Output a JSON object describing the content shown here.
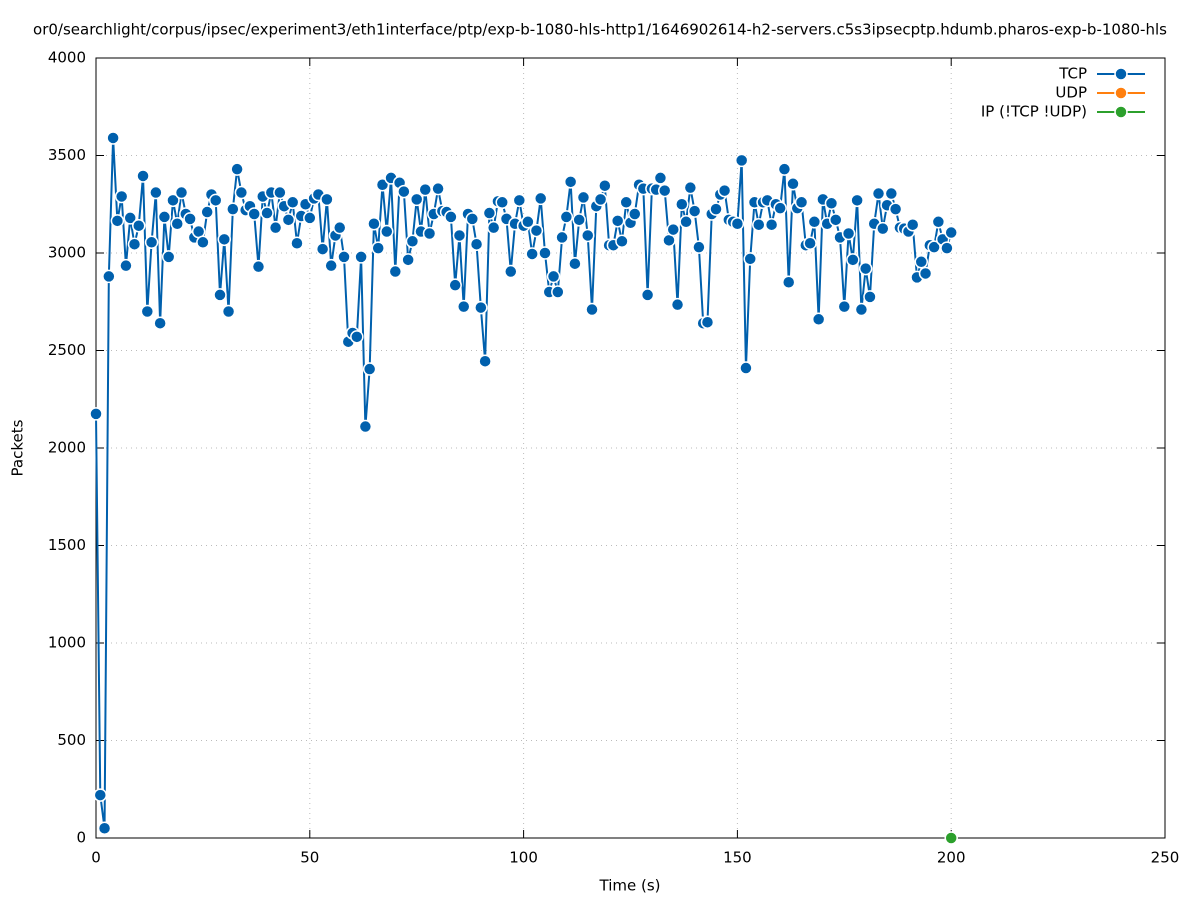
{
  "chart_data": {
    "type": "line",
    "title": "or0/searchlight/corpus/ipsec/experiment3/eth1interface/ptp/exp-b-1080-hls-http1/1646902614-h2-servers.c5s3ipsecptp.hdumb.pharos-exp-b-1080-hls",
    "xlabel": "Time (s)",
    "ylabel": "Packets",
    "xlim": [
      0,
      250
    ],
    "xticks": [
      0,
      50,
      100,
      150,
      200,
      250
    ],
    "ylim": [
      0,
      4000
    ],
    "yticks": [
      0,
      500,
      1000,
      1500,
      2000,
      2500,
      3000,
      3500,
      4000
    ],
    "grid": true,
    "legend": "top-right",
    "series": [
      {
        "name": "TCP",
        "color": "#0060ad",
        "x": [
          0,
          1,
          2,
          3,
          4,
          5,
          6,
          7,
          8,
          9,
          10,
          11,
          12,
          13,
          14,
          15,
          16,
          17,
          18,
          19,
          20,
          21,
          22,
          23,
          24,
          25,
          26,
          27,
          28,
          29,
          30,
          31,
          32,
          33,
          34,
          35,
          36,
          37,
          38,
          39,
          40,
          41,
          42,
          43,
          44,
          45,
          46,
          47,
          48,
          49,
          50,
          51,
          52,
          53,
          54,
          55,
          56,
          57,
          58,
          59,
          60,
          61,
          62,
          63,
          64,
          65,
          66,
          67,
          68,
          69,
          70,
          71,
          72,
          73,
          74,
          75,
          76,
          77,
          78,
          79,
          80,
          81,
          82,
          83,
          84,
          85,
          86,
          87,
          88,
          89,
          90,
          91,
          92,
          93,
          94,
          95,
          96,
          97,
          98,
          99,
          100,
          101,
          102,
          103,
          104,
          105,
          106,
          107,
          108,
          109,
          110,
          111,
          112,
          113,
          114,
          115,
          116,
          117,
          118,
          119,
          120,
          121,
          122,
          123,
          124,
          125,
          126,
          127,
          128,
          129,
          130,
          131,
          132,
          133,
          134,
          135,
          136,
          137,
          138,
          139,
          140,
          141,
          142,
          143,
          144,
          145,
          146,
          147,
          148,
          149,
          150,
          151,
          152,
          153,
          154,
          155,
          156,
          157,
          158,
          159,
          160,
          161,
          162,
          163,
          164,
          165,
          166,
          167,
          168,
          169,
          170,
          171,
          172,
          173,
          174,
          175,
          176,
          177,
          178,
          179,
          180,
          181,
          182,
          183,
          184,
          185,
          186,
          187,
          188,
          189,
          190,
          191,
          192,
          193,
          194,
          195,
          196,
          197,
          198,
          199,
          200
        ],
        "values": [
          2175,
          220,
          50,
          2880,
          3590,
          3165,
          3290,
          2935,
          3180,
          3045,
          3140,
          3395,
          2700,
          3055,
          3310,
          2640,
          3185,
          2980,
          3270,
          3150,
          3310,
          3200,
          3175,
          3080,
          3110,
          3055,
          3210,
          3300,
          3270,
          2785,
          3070,
          2700,
          3225,
          3430,
          3310,
          3220,
          3240,
          3200,
          2930,
          3290,
          3205,
          3310,
          3130,
          3310,
          3240,
          3170,
          3260,
          3050,
          3190,
          3250,
          3180,
          3280,
          3300,
          3020,
          3275,
          2935,
          3090,
          3130,
          2980,
          2545,
          2590,
          2570,
          2980,
          2110,
          2405,
          3150,
          3025,
          3350,
          3110,
          3385,
          2905,
          3360,
          3315,
          2965,
          3060,
          3275,
          3110,
          3325,
          3100,
          3200,
          3330,
          3215,
          3210,
          3185,
          2835,
          3090,
          2725,
          3200,
          3175,
          3045,
          2720,
          2445,
          3205,
          3130,
          3265,
          3260,
          3175,
          2905,
          3150,
          3270,
          3140,
          3160,
          2995,
          3115,
          3280,
          3000,
          2800,
          2880,
          2800,
          3080,
          3185,
          3365,
          2945,
          3170,
          3285,
          3090,
          2710,
          3240,
          3275,
          3345,
          3040,
          3040,
          3165,
          3060,
          3260,
          3155,
          3200,
          3350,
          3330,
          2785,
          3330,
          3325,
          3385,
          3320,
          3065,
          3120,
          2735,
          3250,
          3160,
          3335,
          3215,
          3030,
          2640,
          2645,
          3200,
          3225,
          3300,
          3320,
          3170,
          3160,
          3150,
          3475,
          2410,
          2970,
          3260,
          3145,
          3260,
          3270,
          3145,
          3250,
          3230,
          3430,
          2850,
          3355,
          3230,
          3260,
          3040,
          3050,
          3160,
          2660,
          3275,
          3150,
          3255,
          3170,
          3080,
          2725,
          3100,
          2965,
          3270,
          2710,
          2920,
          2775,
          3150,
          3305,
          3125,
          3245,
          3305,
          3225,
          3130,
          3125,
          3110,
          3145,
          2875,
          2955,
          2895,
          3040,
          3030,
          3160,
          3070,
          3025,
          3105
        ]
      },
      {
        "name": "UDP",
        "color": "#ff7f0e",
        "x": [],
        "values": []
      },
      {
        "name": "IP (!TCP  !UDP)",
        "color": "#2ca02c",
        "x": [
          200
        ],
        "values": [
          0
        ]
      }
    ]
  }
}
